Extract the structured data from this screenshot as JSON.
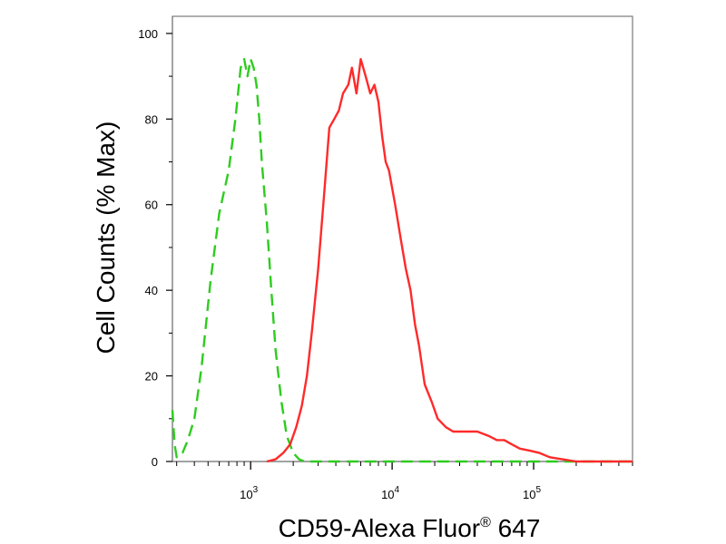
{
  "chart_data": {
    "type": "line",
    "title": "",
    "xlabel": "CD59-Alexa Fluor® 647",
    "ylabel": "Cell Counts (% Max)",
    "x_scale": "log",
    "xlim": [
      280,
      500000
    ],
    "ylim": [
      0,
      104
    ],
    "grid": false,
    "legend": "none",
    "y_ticks": [
      0,
      20,
      40,
      60,
      80,
      100
    ],
    "x_ticks": [
      {
        "base": "10",
        "exp": "3",
        "value": 1000
      },
      {
        "base": "10",
        "exp": "4",
        "value": 10000
      },
      {
        "base": "10",
        "exp": "5",
        "value": 100000
      }
    ],
    "series": [
      {
        "color": "#2ecc1f",
        "style": "dashed",
        "x": [
          280,
          290,
          300,
          330,
          360,
          400,
          450,
          520,
          600,
          700,
          780,
          850,
          900,
          950,
          1000,
          1050,
          1100,
          1150,
          1200,
          1300,
          1400,
          1500,
          1650,
          1800,
          2000,
          2200,
          2400,
          2700,
          3000,
          5000,
          10000,
          50000,
          100000,
          200000,
          500000
        ],
        "y": [
          12,
          4,
          1,
          2,
          5,
          10,
          22,
          42,
          58,
          68,
          80,
          92,
          94,
          90,
          94,
          92,
          88,
          80,
          70,
          56,
          40,
          26,
          14,
          6,
          2,
          0.5,
          0,
          0,
          0,
          0,
          0,
          0,
          0,
          0,
          0
        ]
      },
      {
        "color": "#ff2a2a",
        "style": "solid",
        "x": [
          1300,
          1500,
          1700,
          1900,
          2100,
          2300,
          2500,
          2700,
          3000,
          3300,
          3600,
          3900,
          4200,
          4500,
          4900,
          5200,
          5600,
          6000,
          6500,
          7000,
          7500,
          8000,
          8500,
          9000,
          9500,
          10500,
          11500,
          12500,
          13500,
          14500,
          15500,
          17000,
          19000,
          21000,
          24000,
          27000,
          30000,
          35000,
          40000,
          48000,
          55000,
          62000,
          70000,
          80000,
          95000,
          110000,
          130000,
          160000,
          200000,
          300000,
          500000
        ],
        "y": [
          0,
          0.5,
          2,
          4,
          8,
          13,
          20,
          30,
          45,
          62,
          78,
          80,
          82,
          86,
          88,
          92,
          86,
          94,
          90,
          86,
          88,
          84,
          76,
          70,
          68,
          60,
          52,
          45,
          40,
          32,
          27,
          18,
          14,
          10,
          8,
          7,
          7,
          7,
          7,
          6,
          5,
          5,
          4,
          3,
          2.5,
          2,
          1,
          0.5,
          0,
          0,
          0
        ]
      }
    ]
  }
}
